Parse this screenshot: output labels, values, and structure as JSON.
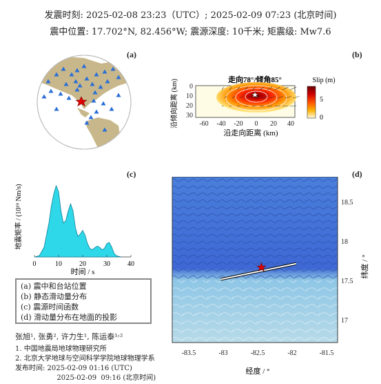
{
  "header": {
    "line1": "发震时刻: 2025-02-08 23:23（UTC）;   2025-02-09  07:23 (北京时间)",
    "line2": "震中位置: 17.702°N,  82.456°W;   震源深度: 10千米; 矩震级: Mw7.6"
  },
  "panels": {
    "a": {
      "label": "(a)"
    },
    "b": {
      "label": "(b)",
      "title": "走向78°/倾角85°",
      "colorbar_label": "Slip (m)",
      "colorbar_ticks": [
        "5",
        "0"
      ],
      "xlabel": "沿走向距离 (km)",
      "ylabel": "沿倾向距离 (km)",
      "xticks": [
        "-60",
        "-40",
        "-20",
        "0",
        "20",
        "40"
      ],
      "yticks": [
        "0",
        "10",
        "20",
        "30"
      ]
    },
    "c": {
      "label": "(c)",
      "xlabel": "时间 / s",
      "ylabel": "地震矩率 / (10¹⁹ Nm/s)",
      "xticks": [
        "0",
        "10",
        "20",
        "30",
        "40"
      ]
    },
    "d": {
      "label": "(d)",
      "xlabel": "经度 / °",
      "ylabel": "纬度 / °",
      "xticks": [
        "-83.5",
        "-83",
        "-82.5",
        "-82",
        "-81.5"
      ],
      "yticks": [
        "18.5",
        "18",
        "17.5",
        "17"
      ]
    }
  },
  "legend": {
    "items": [
      "(a) 震中和台站位置",
      "(b) 静态滑动量分布",
      "(c) 震源时间函数",
      "(d) 滑动量分布在地面的投影"
    ]
  },
  "credits": {
    "authors": "张旭¹, 张勇², 许力生¹, 陈运泰¹˒²",
    "affil1": "1. 中国地震局地球物理研究所",
    "affil2": "2. 北京大学地球与空间科学学院地球物理学系",
    "pub1": "发布时间:    2025-02-09  01:16 (UTC)",
    "pub2": "                   2025-02-09  09:16 (北京时间)"
  },
  "chart_data": [
    {
      "type": "area",
      "panel": "c",
      "x": [
        0,
        2,
        4,
        6,
        7,
        8,
        9,
        10,
        11,
        12,
        13,
        14,
        15,
        16,
        17,
        18,
        19,
        20,
        21,
        22,
        23,
        24,
        25,
        26,
        27,
        28,
        29,
        30,
        31,
        32,
        33,
        34,
        35,
        36
      ],
      "y": [
        0,
        0.05,
        0.4,
        1.4,
        2.1,
        2.6,
        2.95,
        2.7,
        1.9,
        1.4,
        1.5,
        1.9,
        2.2,
        1.9,
        1.2,
        0.85,
        0.95,
        1.1,
        0.9,
        0.55,
        0.35,
        0.3,
        0.38,
        0.45,
        0.4,
        0.3,
        0.35,
        0.55,
        0.6,
        0.42,
        0.15,
        0.05,
        0.02,
        0
      ],
      "xlabel": "时间 / s",
      "ylabel": "地震矩率 / (10¹⁹ Nm/s)",
      "xlim": [
        0,
        40
      ],
      "ylim": [
        0,
        3.2
      ]
    },
    {
      "type": "heatmap",
      "panel": "b",
      "title": "走向78°/倾角85°",
      "xlim": [
        -70,
        45
      ],
      "ylim": [
        0,
        30
      ],
      "peak_slip": 6.8,
      "peak_location": [
        0,
        8
      ],
      "colorbar": "Slip (m)",
      "colorbar_range": [
        0,
        7
      ]
    }
  ],
  "map_d": {
    "fault_start": [
      -83.05,
      17.55
    ],
    "fault_end": [
      -81.95,
      17.75
    ],
    "epicenter": [
      -82.456,
      17.702
    ]
  },
  "colors": {
    "ocean_dark": "#3a5fcf",
    "ocean_light": "#a8d2e6",
    "land": "#c8b78a",
    "star": "#e00000",
    "station": "#2a6fd6",
    "stf_fill": "#2fd8e8"
  }
}
